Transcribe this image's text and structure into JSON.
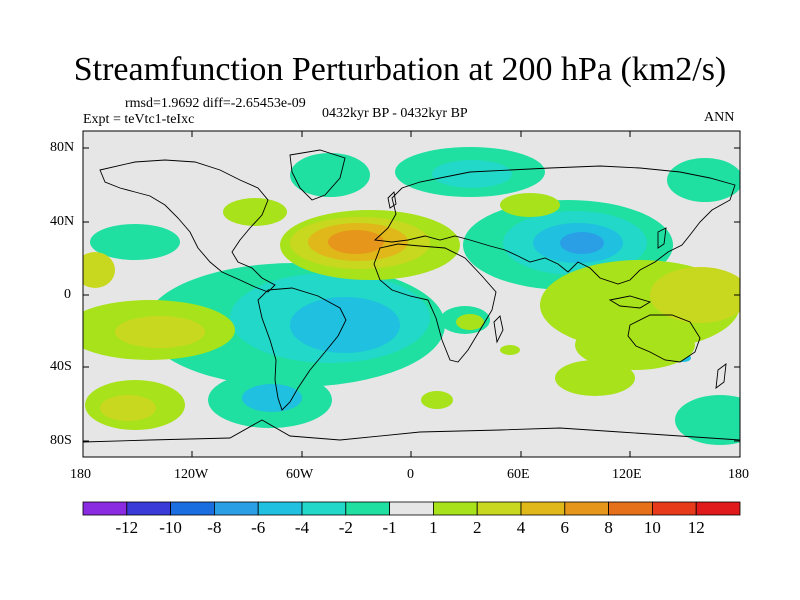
{
  "title": "Streamfunction Perturbation at 200 hPa (km2/s)",
  "stats": {
    "rmsd_label": "rmsd=",
    "rmsd": "1.9692",
    "diff_label": "diff=",
    "diff": "-2.65453e-09"
  },
  "experiment": "Expt = teVtc1-teIxc",
  "time_range": "0432kyr BP - 0432kyr BP",
  "season": "ANN",
  "axes": {
    "lat_ticks": [
      "80N",
      "40N",
      "0",
      "40S",
      "80S"
    ],
    "lon_ticks": [
      "180",
      "120W",
      "60W",
      "0",
      "60E",
      "120E",
      "180"
    ]
  },
  "colorbar": {
    "labels": [
      "-12",
      "-10",
      "-8",
      "-6",
      "-4",
      "-2",
      "-1",
      "1",
      "2",
      "4",
      "6",
      "8",
      "10",
      "12"
    ],
    "colors": [
      "#8a2be2",
      "#3a3ad8",
      "#1a6ee0",
      "#2a9fe6",
      "#1fc0e0",
      "#22d8c8",
      "#1fe0a0",
      "#e6e6e6",
      "#a8e21a",
      "#c8d81f",
      "#e0b81a",
      "#e6961a",
      "#e6701a",
      "#e63a1a",
      "#e01a1a"
    ]
  }
}
